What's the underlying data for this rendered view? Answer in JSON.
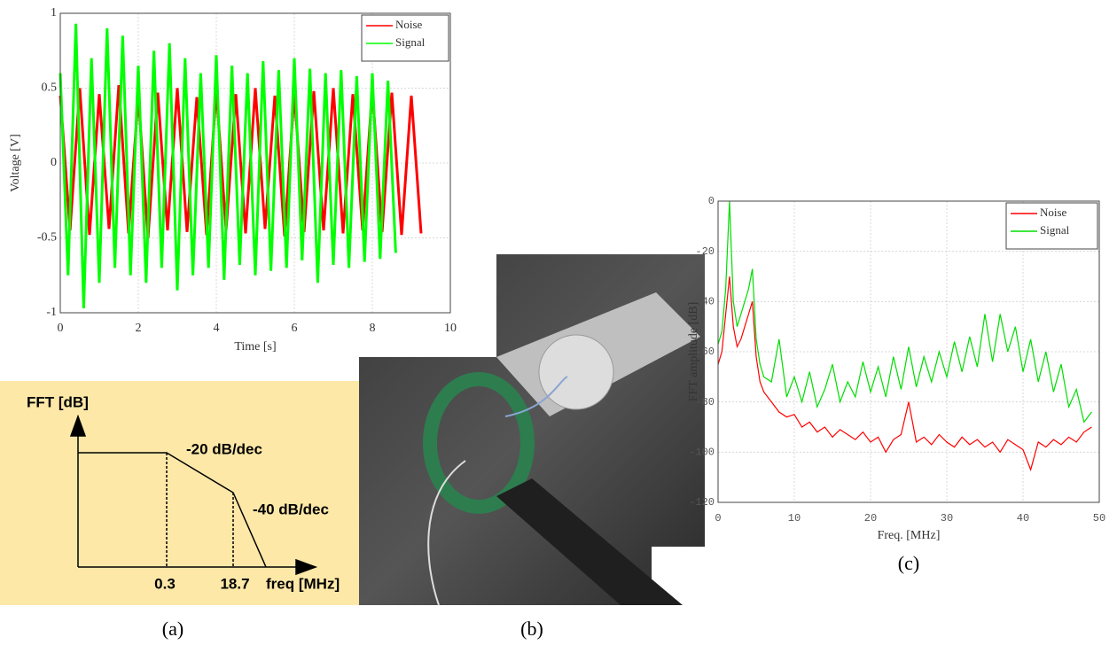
{
  "chart_data": [
    {
      "type": "line",
      "xlabel": "Time [s]",
      "ylabel": "Voltage [V]",
      "xlim": [
        0,
        10
      ],
      "xticks": [
        0,
        2,
        4,
        6,
        8,
        10
      ],
      "ylim": [
        -1,
        1
      ],
      "yticks": [
        -1,
        -0.5,
        0,
        0.5,
        1
      ],
      "grid": true,
      "legend": "northeast",
      "series": [
        {
          "name": "Noise",
          "color": "#ff0000",
          "x": [
            0,
            0.25,
            0.5,
            0.75,
            1,
            1.25,
            1.5,
            1.75,
            2,
            2.25,
            2.5,
            2.75,
            3,
            3.25,
            3.5,
            3.75,
            4,
            4.25,
            4.5,
            4.75,
            5,
            5.25,
            5.5,
            5.75,
            6,
            6.25,
            6.5,
            6.75,
            7,
            7.25,
            7.5,
            7.75,
            8,
            8.25,
            8.5,
            8.75,
            9,
            9.25
          ],
          "values": [
            0.45,
            -0.45,
            0.5,
            -0.48,
            0.46,
            -0.44,
            0.52,
            -0.47,
            0.45,
            -0.5,
            0.47,
            -0.45,
            0.5,
            -0.46,
            0.44,
            -0.48,
            0.49,
            -0.45,
            0.46,
            -0.47,
            0.5,
            -0.44,
            0.45,
            -0.49,
            0.47,
            -0.46,
            0.48,
            -0.45,
            0.5,
            -0.47,
            0.46,
            -0.45,
            0.49,
            -0.46,
            0.47,
            -0.48,
            0.45,
            -0.47
          ]
        },
        {
          "name": "Signal",
          "color": "#00ff00",
          "x": [
            0,
            0.2,
            0.4,
            0.6,
            0.8,
            1,
            1.2,
            1.4,
            1.6,
            1.8,
            2,
            2.2,
            2.4,
            2.6,
            2.8,
            3,
            3.2,
            3.4,
            3.6,
            3.8,
            4,
            4.2,
            4.4,
            4.6,
            4.8,
            5,
            5.2,
            5.4,
            5.6,
            5.8,
            6,
            6.2,
            6.4,
            6.6,
            6.8,
            7,
            7.2,
            7.4,
            7.6,
            7.8,
            8,
            8.2,
            8.4,
            8.6
          ],
          "values": [
            0.6,
            -0.75,
            0.93,
            -0.97,
            0.7,
            -0.8,
            0.9,
            -0.7,
            0.85,
            -0.75,
            0.65,
            -0.8,
            0.75,
            -0.7,
            0.8,
            -0.85,
            0.7,
            -0.75,
            0.6,
            -0.7,
            0.72,
            -0.78,
            0.65,
            -0.68,
            0.6,
            -0.75,
            0.68,
            -0.72,
            0.62,
            -0.7,
            0.7,
            -0.65,
            0.63,
            -0.8,
            0.6,
            -0.68,
            0.62,
            -0.7,
            0.58,
            -0.66,
            0.6,
            -0.64,
            0.55,
            -0.6
          ]
        }
      ]
    },
    {
      "type": "line",
      "xlabel": "Freq. [MHz]",
      "ylabel": "FFT amplitude [dB]",
      "xlim": [
        0,
        50
      ],
      "xticks": [
        0,
        10,
        20,
        30,
        40,
        50
      ],
      "ylim": [
        -120,
        0
      ],
      "yticks": [
        -120,
        -100,
        -80,
        -60,
        -40,
        -20,
        0
      ],
      "grid": true,
      "legend": "northeast",
      "x": [
        0,
        0.5,
        1,
        1.5,
        2,
        2.5,
        3,
        3.5,
        4,
        4.5,
        5,
        5.5,
        6,
        7,
        8,
        9,
        10,
        11,
        12,
        13,
        14,
        15,
        16,
        17,
        18,
        19,
        20,
        21,
        22,
        23,
        24,
        25,
        26,
        27,
        28,
        29,
        30,
        31,
        32,
        33,
        34,
        35,
        36,
        37,
        38,
        39,
        40,
        41,
        42,
        43,
        44,
        45,
        46,
        47,
        48,
        49
      ],
      "series": [
        {
          "name": "Noise",
          "color": "#ff0000",
          "values": [
            -65,
            -60,
            -45,
            -30,
            -50,
            -58,
            -55,
            -50,
            -45,
            -40,
            -62,
            -72,
            -76,
            -80,
            -84,
            -86,
            -85,
            -90,
            -88,
            -92,
            -90,
            -94,
            -91,
            -93,
            -95,
            -92,
            -96,
            -94,
            -100,
            -95,
            -93,
            -80,
            -96,
            -94,
            -97,
            -93,
            -96,
            -98,
            -94,
            -97,
            -95,
            -98,
            -96,
            -100,
            -95,
            -97,
            -99,
            -107,
            -96,
            -98,
            -95,
            -97,
            -94,
            -96,
            -92,
            -90
          ]
        },
        {
          "name": "Signal",
          "color": "#00dd00",
          "values": [
            -57,
            -52,
            -35,
            0,
            -40,
            -50,
            -45,
            -40,
            -35,
            -27,
            -55,
            -65,
            -70,
            -72,
            -55,
            -78,
            -70,
            -80,
            -68,
            -82,
            -75,
            -65,
            -80,
            -72,
            -78,
            -64,
            -76,
            -66,
            -78,
            -62,
            -75,
            -58,
            -74,
            -62,
            -72,
            -60,
            -70,
            -56,
            -68,
            -54,
            -66,
            -45,
            -64,
            -45,
            -60,
            -50,
            -68,
            -55,
            -72,
            -60,
            -76,
            -65,
            -82,
            -75,
            -88,
            -84
          ]
        }
      ]
    }
  ],
  "diagram": {
    "ylabel": "FFT [dB]",
    "slope1": "-20 dB/dec",
    "slope2": "-40 dB/dec",
    "corner1": "0.3",
    "corner2": "18.7",
    "xlabel": "freq [MHz]"
  },
  "captions": [
    "(a)",
    "(b)",
    "(c)"
  ]
}
